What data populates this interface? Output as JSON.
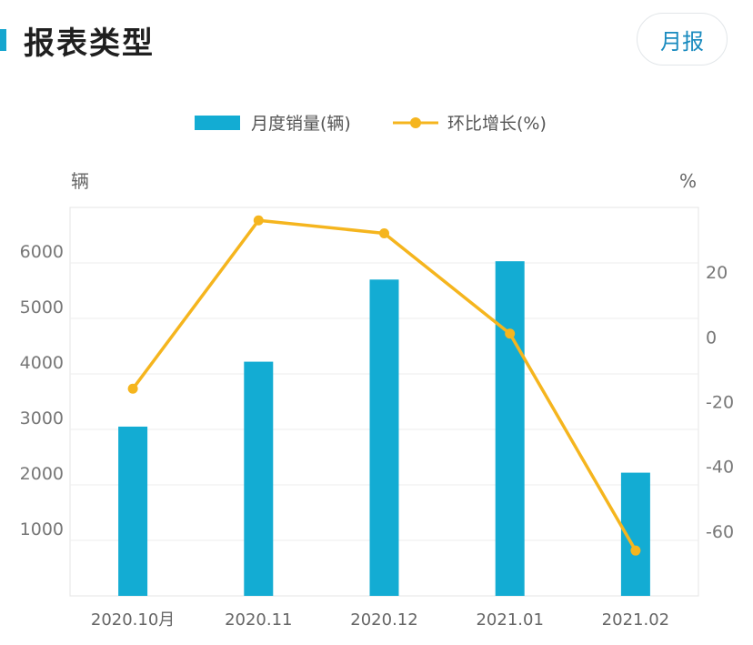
{
  "header": {
    "title": "报表类型",
    "report_button_label": "月报"
  },
  "chart_data": {
    "type": "bar+line",
    "categories": [
      "2020.10月",
      "2020.11",
      "2020.12",
      "2021.01",
      "2021.02"
    ],
    "series": [
      {
        "name": "月度销量(辆)",
        "type": "bar",
        "axis": "left",
        "color": "#13acd3",
        "values": [
          3050,
          4220,
          5700,
          6030,
          2220
        ]
      },
      {
        "name": "环比增长(%)",
        "type": "line",
        "axis": "right",
        "color": "#f5b51e",
        "values": [
          -16,
          36,
          32,
          1,
          -66
        ]
      }
    ],
    "left_axis": {
      "unit": "辆",
      "min": 0,
      "max": 7000,
      "ticks": [
        1000,
        2000,
        3000,
        4000,
        5000,
        6000
      ]
    },
    "right_axis": {
      "unit": "%",
      "min": -80,
      "max": 40,
      "ticks": [
        20,
        0,
        -20,
        -40,
        -60
      ]
    },
    "legend_position": "top-center",
    "grid": true
  }
}
